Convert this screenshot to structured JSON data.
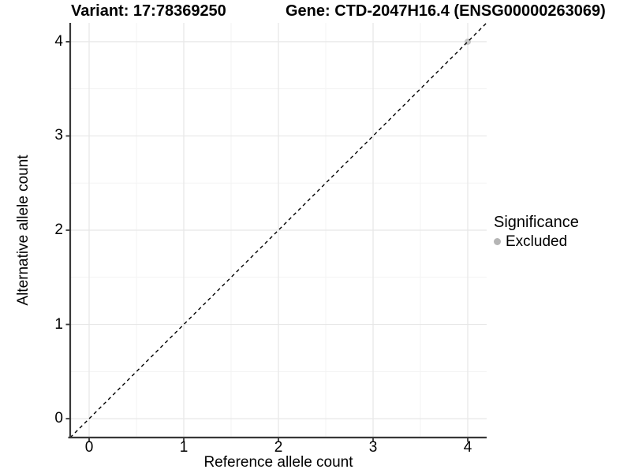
{
  "header": {
    "variant_title": "Variant: 17:78369250",
    "gene_title": "Gene: CTD-2047H16.4 (ENSG00000263069)"
  },
  "chart_data": {
    "type": "scatter",
    "xlabel": "Reference allele count",
    "ylabel": "Alternative allele count",
    "xlim": [
      -0.2,
      4.2
    ],
    "ylim": [
      -0.2,
      4.2
    ],
    "x_ticks": [
      0,
      1,
      2,
      3,
      4
    ],
    "y_ticks": [
      0,
      1,
      2,
      3,
      4
    ],
    "x_minor_ticks": [
      0.5,
      1.5,
      2.5,
      3.5
    ],
    "y_minor_ticks": [
      0.5,
      1.5,
      2.5,
      3.5
    ],
    "grid": "major+minor",
    "identity_line": {
      "style": "dashed",
      "from": [
        -0.2,
        -0.2
      ],
      "to": [
        4.2,
        4.2
      ],
      "color": "#000000"
    },
    "points": [
      {
        "x": 4,
        "y": 4,
        "significance": "Excluded"
      }
    ],
    "legend": {
      "title": "Significance",
      "position": "right",
      "items": [
        {
          "label": "Excluded",
          "color": "#b5b5b5"
        }
      ]
    },
    "style": {
      "grid_major_color": "#e7e7e7",
      "grid_minor_color": "#f3f3f3",
      "axis_line_color": "#383838",
      "point_color": "#bdbdbd",
      "point_opacity": 0.85
    }
  }
}
